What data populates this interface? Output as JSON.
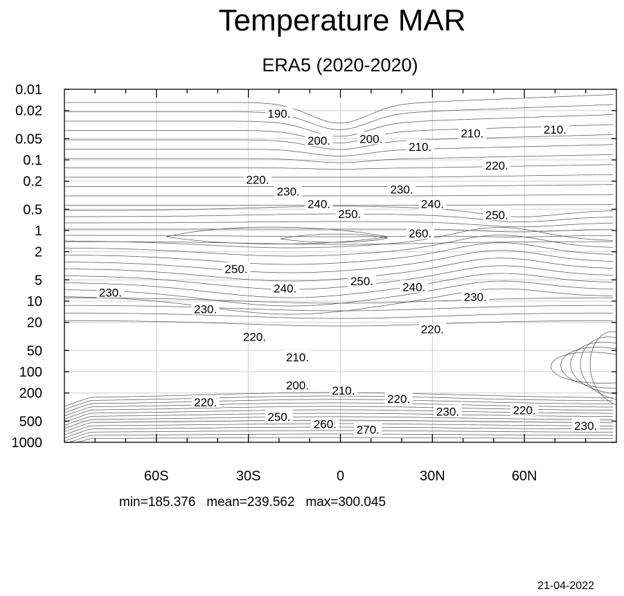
{
  "chart_data": {
    "type": "contour",
    "title": "Temperature MAR",
    "subtitle": "ERA5 (2020-2020)",
    "x_tick_labels": [
      {
        "lat": -60,
        "label": "60S"
      },
      {
        "lat": -30,
        "label": "30S"
      },
      {
        "lat": 0,
        "label": "0"
      },
      {
        "lat": 30,
        "label": "30N"
      },
      {
        "lat": 60,
        "label": "60N"
      }
    ],
    "xlim": [
      -90,
      90
    ],
    "y_tick_labels": [
      {
        "p": 0.01,
        "label": "0.01"
      },
      {
        "p": 0.02,
        "label": "0.02"
      },
      {
        "p": 0.05,
        "label": "0.05"
      },
      {
        "p": 0.1,
        "label": "0.1"
      },
      {
        "p": 0.2,
        "label": "0.2"
      },
      {
        "p": 0.5,
        "label": "0.5"
      },
      {
        "p": 1,
        "label": "1"
      },
      {
        "p": 2,
        "label": "2"
      },
      {
        "p": 5,
        "label": "5"
      },
      {
        "p": 10,
        "label": "10"
      },
      {
        "p": 20,
        "label": "20"
      },
      {
        "p": 50,
        "label": "50"
      },
      {
        "p": 100,
        "label": "100"
      },
      {
        "p": 200,
        "label": "200"
      },
      {
        "p": 500,
        "label": "500"
      },
      {
        "p": 1000,
        "label": "1000"
      }
    ],
    "ylim": [
      1000,
      0.01
    ],
    "y_scale": "log",
    "y_inverted": true,
    "grid": true,
    "contour_interval": 5,
    "contour_labels": [
      {
        "lat": -20,
        "p": 0.022,
        "label": "190."
      },
      {
        "lat": -7,
        "p": 0.053,
        "label": "200."
      },
      {
        "lat": 10,
        "p": 0.05,
        "label": "200."
      },
      {
        "lat": -27,
        "p": 0.19,
        "label": "220."
      },
      {
        "lat": -17,
        "p": 0.28,
        "label": "230."
      },
      {
        "lat": -7,
        "p": 0.42,
        "label": "240."
      },
      {
        "lat": 3,
        "p": 0.58,
        "label": "250."
      },
      {
        "lat": 20,
        "p": 0.26,
        "label": "230."
      },
      {
        "lat": 26,
        "p": 0.065,
        "label": "210."
      },
      {
        "lat": 43,
        "p": 0.042,
        "label": "210."
      },
      {
        "lat": 51,
        "p": 0.12,
        "label": "220."
      },
      {
        "lat": 70,
        "p": 0.037,
        "label": "210."
      },
      {
        "lat": 30,
        "p": 0.42,
        "label": "240."
      },
      {
        "lat": 51,
        "p": 0.6,
        "label": "250."
      },
      {
        "lat": 26,
        "p": 1.1,
        "label": "260."
      },
      {
        "lat": -34,
        "p": 3.5,
        "label": "250."
      },
      {
        "lat": -18,
        "p": 6.6,
        "label": "240."
      },
      {
        "lat": 7,
        "p": 5.2,
        "label": "250."
      },
      {
        "lat": 24,
        "p": 6.3,
        "label": "240."
      },
      {
        "lat": 44,
        "p": 8.7,
        "label": "230."
      },
      {
        "lat": -75,
        "p": 7.5,
        "label": "230."
      },
      {
        "lat": -44,
        "p": 13,
        "label": "230."
      },
      {
        "lat": -28,
        "p": 32,
        "label": "220."
      },
      {
        "lat": -14,
        "p": 62,
        "label": "210."
      },
      {
        "lat": 30,
        "p": 25,
        "label": "220."
      },
      {
        "lat": -14,
        "p": 156,
        "label": "200."
      },
      {
        "lat": 1,
        "p": 183,
        "label": "210."
      },
      {
        "lat": 19,
        "p": 240,
        "label": "220."
      },
      {
        "lat": -44,
        "p": 270,
        "label": "220."
      },
      {
        "lat": 35,
        "p": 366,
        "label": "230."
      },
      {
        "lat": 60,
        "p": 352,
        "label": "220."
      },
      {
        "lat": 80,
        "p": 582,
        "label": "230."
      },
      {
        "lat": -20,
        "p": 432,
        "label": "250."
      },
      {
        "lat": -5,
        "p": 550,
        "label": "260."
      },
      {
        "lat": 9,
        "p": 655,
        "label": "270."
      }
    ],
    "stats": "min=185.376   mean=239.562   max=300.045",
    "date": "21-04-2022"
  }
}
